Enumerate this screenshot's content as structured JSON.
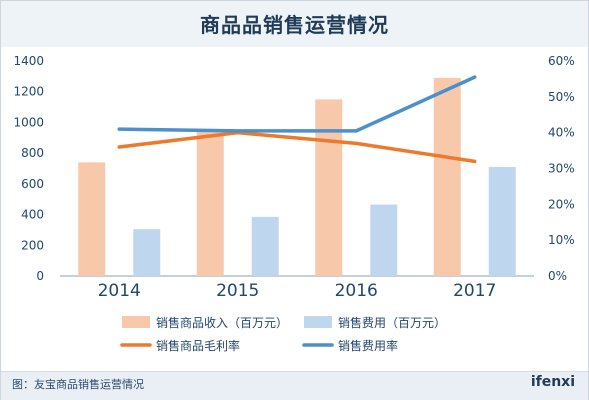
{
  "title": "商品品销售运营情况",
  "caption": "图：友宝商品销售运营情况",
  "logo": "ifenxi",
  "colors": {
    "revenue_bar": "#f7c9aa",
    "expense_bar": "#bfd7ee",
    "margin_line": "#ec7a2c",
    "expense_rate_line": "#4b90cc"
  },
  "chart_data": {
    "type": "bar",
    "categories": [
      "2014",
      "2015",
      "2016",
      "2017"
    ],
    "left_axis": {
      "ylim": [
        0,
        1400
      ],
      "ticks": [
        0,
        200,
        400,
        600,
        800,
        1000,
        1200,
        1400
      ]
    },
    "right_axis": {
      "ylim": [
        0,
        60
      ],
      "ticks": [
        "0%",
        "10%",
        "20%",
        "30%",
        "40%",
        "50%",
        "60%"
      ],
      "tick_values": [
        0,
        10,
        20,
        30,
        40,
        50,
        60
      ]
    },
    "series": [
      {
        "name": "销售商品收入（百万元）",
        "type": "bar",
        "axis": "left",
        "values": [
          740,
          940,
          1150,
          1290
        ]
      },
      {
        "name": "销售费用（百万元）",
        "type": "bar",
        "axis": "left",
        "values": [
          305,
          385,
          465,
          710
        ]
      },
      {
        "name": "销售商品毛利率",
        "type": "line",
        "axis": "right",
        "values": [
          36,
          40,
          37,
          32
        ]
      },
      {
        "name": "销售费用率",
        "type": "line",
        "axis": "right",
        "values": [
          41,
          40.5,
          40.5,
          55.5
        ]
      }
    ],
    "legend_position": "bottom",
    "grid": false
  }
}
